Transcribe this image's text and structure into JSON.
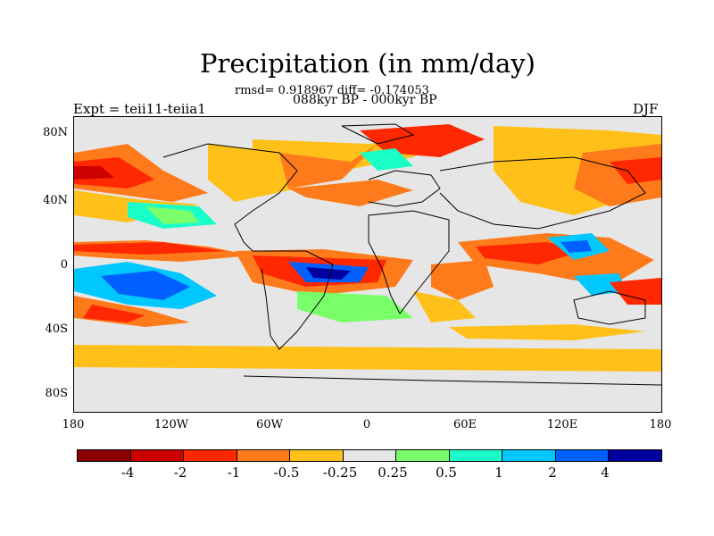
{
  "title": "Precipitation (in mm/day)",
  "stats": "rmsd= 0.918967 diff= -0.174053",
  "period": "088kyr BP - 000kyr BP",
  "experiment": "Expt = teii11-teiia1",
  "season": "DJF",
  "lat_labels": [
    "80N",
    "40N",
    "0",
    "40S",
    "80S"
  ],
  "lon_labels": [
    "180",
    "120W",
    "60W",
    "0",
    "60E",
    "120E",
    "180"
  ],
  "colorbar": {
    "colors": [
      "#8b0000",
      "#cd0000",
      "#ff2800",
      "#ff7a1a",
      "#ffc01a",
      "#e6e6e6",
      "#7aff6a",
      "#1affc8",
      "#00c8ff",
      "#0060ff",
      "#0000a0"
    ],
    "labels": [
      "-4",
      "-2",
      "-1",
      "-0.5",
      "-0.25",
      "0.25",
      "0.5",
      "1",
      "2",
      "4"
    ]
  }
}
